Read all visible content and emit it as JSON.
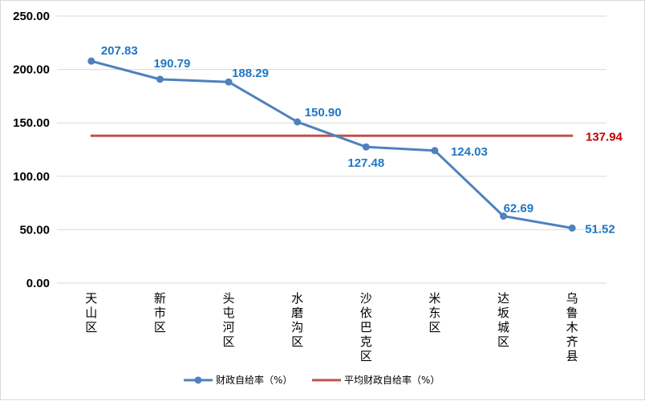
{
  "chart_data": {
    "type": "line",
    "categories": [
      "天山区",
      "新市区",
      "头屯河区",
      "水磨沟区",
      "沙依巴克区",
      "米东区",
      "达坂城区",
      "乌鲁木齐县"
    ],
    "series": [
      {
        "name": "财政自给率（%）",
        "values": [
          207.83,
          190.79,
          188.29,
          150.9,
          127.48,
          124.03,
          62.69,
          51.52
        ],
        "labels": [
          "207.83",
          "190.79",
          "188.29",
          "150.90",
          "127.48",
          "124.03",
          "62.69",
          "51.52"
        ],
        "color": "#4f81bd",
        "label_color": "#1f77c4"
      },
      {
        "name": "平均财政自给率（%）",
        "values": [
          137.94,
          137.94,
          137.94,
          137.94,
          137.94,
          137.94,
          137.94,
          137.94
        ],
        "label": "137.94",
        "color": "#c0504d",
        "label_color": "#c00000"
      }
    ],
    "y_ticks": [
      "0.00",
      "50.00",
      "100.00",
      "150.00",
      "200.00",
      "250.00"
    ],
    "ylim": [
      0,
      250
    ],
    "grid": true,
    "gridline_color": "#d9d9d9",
    "legend_position": "bottom-center",
    "title": "",
    "xlabel": "",
    "ylabel": ""
  }
}
